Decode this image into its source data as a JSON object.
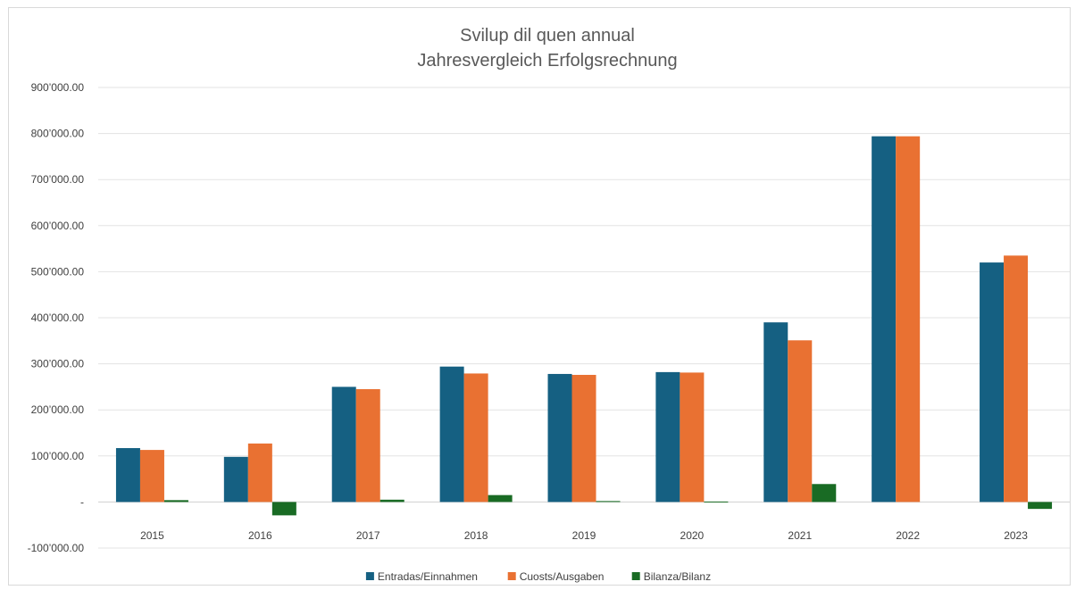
{
  "chart_data": {
    "type": "bar",
    "title": [
      "Svilup dil quen annual",
      "Jahresvergleich Erfolgsrechnung"
    ],
    "xlabel": "",
    "ylabel": "",
    "categories": [
      "2015",
      "2016",
      "2017",
      "2018",
      "2019",
      "2020",
      "2021",
      "2022",
      "2023"
    ],
    "series": [
      {
        "name": "Entradas/Einnahmen",
        "color": "#156082",
        "values": [
          117000,
          98000,
          250000,
          294000,
          278000,
          282000,
          390000,
          794000,
          520000
        ]
      },
      {
        "name": "Cuosts/Ausgaben",
        "color": "#E97132",
        "values": [
          113000,
          127000,
          245000,
          279000,
          276000,
          281000,
          351000,
          794000,
          535000
        ]
      },
      {
        "name": "Bilanza/Bilanz",
        "color": "#196B24",
        "values": [
          4000,
          -29000,
          5000,
          15000,
          2000,
          1000,
          39000,
          0,
          -15000
        ]
      }
    ],
    "ylim": [
      -100000,
      900000
    ],
    "yticks": [
      900000,
      800000,
      700000,
      600000,
      500000,
      400000,
      300000,
      200000,
      100000,
      0,
      -100000
    ],
    "ytick_labels": [
      "900’000.00",
      "800’000.00",
      "700’000.00",
      "600’000.00",
      "500’000.00",
      "400’000.00",
      "300’000.00",
      "200’000.00",
      "100’000.00",
      "-",
      "-100’000.00"
    ],
    "grid": true,
    "legend_position": "bottom"
  }
}
